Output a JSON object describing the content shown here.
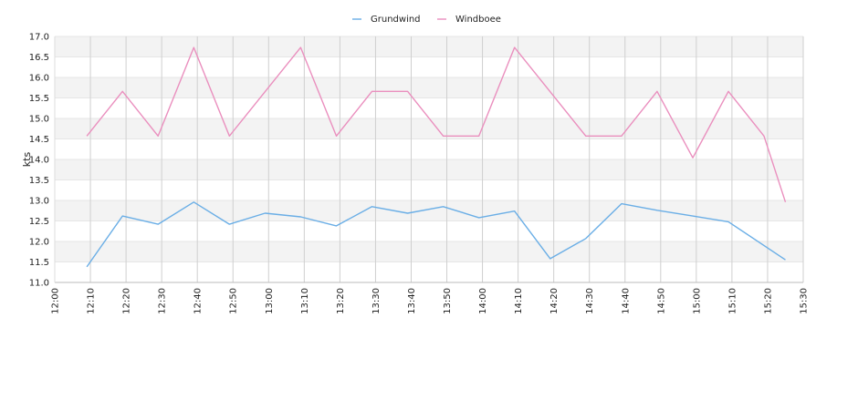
{
  "chart_data": {
    "type": "line",
    "title": "",
    "xlabel": "",
    "ylabel": "kts",
    "xlim": [
      "12:00",
      "15:30"
    ],
    "ylim": [
      11.0,
      17.0
    ],
    "x_ticks": [
      "12:00",
      "12:10",
      "12:20",
      "12:30",
      "12:40",
      "12:50",
      "13:00",
      "13:10",
      "13:20",
      "13:30",
      "13:40",
      "13:50",
      "14:00",
      "14:10",
      "14:20",
      "14:30",
      "14:40",
      "14:50",
      "15:00",
      "15:10",
      "15:20",
      "15:30"
    ],
    "y_ticks": [
      "11.0",
      "11.5",
      "12.0",
      "12.5",
      "13.0",
      "13.5",
      "14.0",
      "14.5",
      "15.0",
      "15.5",
      "16.0",
      "16.5",
      "17.0"
    ],
    "grid": true,
    "legend_position": "top-center",
    "x": [
      "12:09",
      "12:19",
      "12:29",
      "12:39",
      "12:49",
      "12:59",
      "13:09",
      "13:19",
      "13:29",
      "13:39",
      "13:49",
      "13:59",
      "14:09",
      "14:19",
      "14:29",
      "14:39",
      "14:49",
      "14:59",
      "15:09",
      "15:19",
      "15:25"
    ],
    "series": [
      {
        "name": "Grundwind",
        "color": "#6aaee6",
        "values": [
          11.38,
          12.62,
          12.42,
          12.96,
          12.42,
          12.69,
          12.6,
          12.38,
          12.85,
          12.69,
          12.85,
          12.58,
          12.74,
          11.58,
          12.07,
          12.92,
          12.76,
          12.62,
          12.48,
          null,
          11.55
        ]
      },
      {
        "name": "Windboee",
        "color": "#ea8fbe",
        "values": [
          14.57,
          15.66,
          14.57,
          16.73,
          14.57,
          null,
          16.73,
          14.57,
          15.66,
          15.66,
          14.57,
          14.57,
          16.73,
          null,
          14.57,
          14.57,
          15.66,
          14.04,
          15.66,
          14.57,
          12.96
        ]
      }
    ]
  }
}
